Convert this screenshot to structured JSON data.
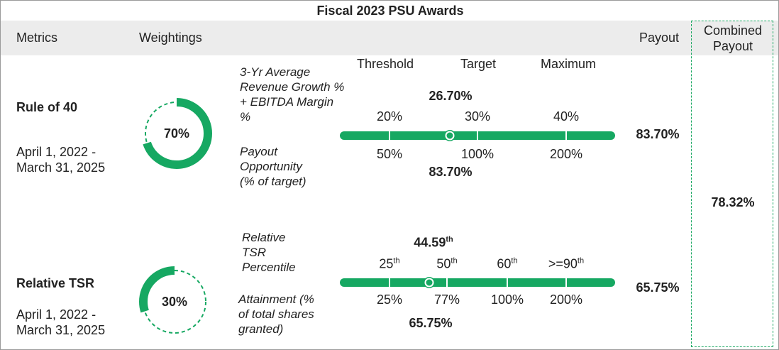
{
  "title": "Fiscal 2023 PSU Awards",
  "header": {
    "metrics": "Metrics",
    "weightings": "Weightings",
    "payout": "Payout",
    "combined_payout": "Combined Payout"
  },
  "scale_header": [
    "Threshold",
    "Target",
    "Maximum"
  ],
  "rows": [
    {
      "metric": "Rule of 40",
      "period": "April 1, 2022 - March 31, 2025",
      "weighting": {
        "value": 70,
        "label": "70%"
      },
      "measure_label": "3-Yr Average Revenue Growth % + EBITDA Margin %",
      "result": {
        "text": "26.70%"
      },
      "scale": [
        {
          "text": "20%"
        },
        {
          "text": "30%"
        },
        {
          "text": "40%"
        }
      ],
      "payout_label": "Payout Opportunity (% of target)",
      "payout_scale": [
        "50%",
        "100%",
        "200%"
      ],
      "payout_result": "83.70%",
      "payout": "83.70%"
    },
    {
      "metric": "Relative TSR",
      "period": "April 1, 2022 - March 31, 2025",
      "weighting": {
        "value": 30,
        "label": "30%"
      },
      "measure_label": "Relative TSR Percentile",
      "result": {
        "text": "44.59",
        "sup": "th"
      },
      "scale": [
        {
          "text": "25",
          "sup": "th"
        },
        {
          "text": "50",
          "sup": "th"
        },
        {
          "text": "60",
          "sup": "th"
        },
        {
          "text": ">=90",
          "sup": "th"
        }
      ],
      "payout_label": "Attainment (% of total shares granted)",
      "payout_scale": [
        "25%",
        "77%",
        "100%",
        "200%"
      ],
      "payout_result": "65.75%",
      "payout": "65.75%"
    }
  ],
  "combined_payout": "78.32%"
}
